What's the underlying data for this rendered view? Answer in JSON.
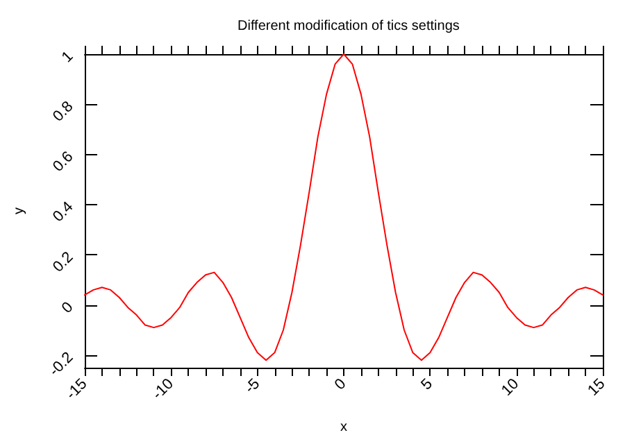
{
  "chart_data": {
    "type": "line",
    "title": "Different modification of tics settings",
    "xlabel": "x",
    "ylabel": "y",
    "x": [
      -15,
      -14.5,
      -14,
      -13.5,
      -13,
      -12.5,
      -12,
      -11.5,
      -11,
      -10.5,
      -10,
      -9.5,
      -9,
      -8.5,
      -8,
      -7.5,
      -7,
      -6.5,
      -6,
      -5.5,
      -5,
      -4.5,
      -4,
      -3.5,
      -3,
      -2.5,
      -2,
      -1.5,
      -1,
      -0.5,
      0,
      0.5,
      1,
      1.5,
      2,
      2.5,
      3,
      3.5,
      4,
      4.5,
      5,
      5.5,
      6,
      6.5,
      7,
      7.5,
      8,
      8.5,
      9,
      9.5,
      10,
      10.5,
      11,
      11.5,
      12,
      12.5,
      13,
      13.5,
      14,
      14.5,
      15
    ],
    "series": [
      {
        "color": "#ff0000",
        "values": [
          0.04,
          0.06,
          0.07,
          0.06,
          0.03,
          -0.01,
          -0.04,
          -0.08,
          -0.09,
          -0.08,
          -0.05,
          -0.01,
          0.05,
          0.09,
          0.12,
          0.13,
          0.09,
          0.03,
          -0.05,
          -0.13,
          -0.19,
          -0.22,
          -0.19,
          -0.1,
          0.05,
          0.24,
          0.45,
          0.67,
          0.84,
          0.96,
          1,
          0.96,
          0.84,
          0.67,
          0.45,
          0.24,
          0.05,
          -0.1,
          -0.19,
          -0.22,
          -0.19,
          -0.13,
          -0.05,
          0.03,
          0.09,
          0.13,
          0.12,
          0.09,
          0.05,
          -0.01,
          -0.05,
          -0.08,
          -0.09,
          -0.08,
          -0.04,
          -0.01,
          0.03,
          0.06,
          0.07,
          0.06,
          0.04
        ]
      }
    ],
    "xlim": [
      -15,
      15
    ],
    "xticks": [
      -15,
      -10,
      -5,
      0,
      5,
      10,
      15
    ],
    "ylim": [
      -0.25,
      1
    ],
    "yticks": [
      -0.2,
      0,
      0.2,
      0.4,
      0.6,
      0.8,
      1
    ],
    "marker": "none",
    "line_style": "solid"
  }
}
